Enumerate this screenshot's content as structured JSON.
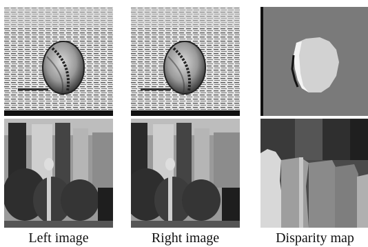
{
  "figure": {
    "captions": {
      "left": "Left image",
      "right": "Right image",
      "disparity": "Disparity map"
    },
    "rows": [
      {
        "scene": "baseball-on-newspaper"
      },
      {
        "scene": "street-building-parking-meter"
      }
    ]
  }
}
